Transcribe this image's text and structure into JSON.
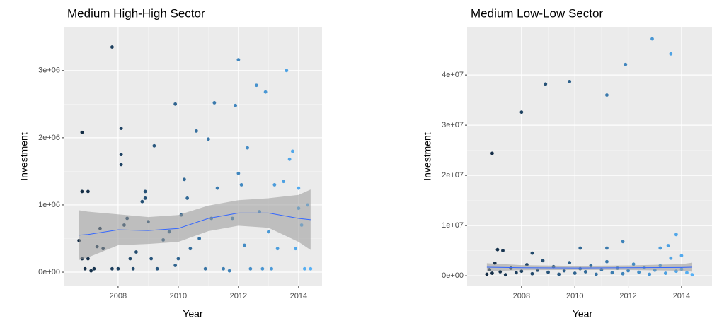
{
  "chart_data": [
    {
      "type": "scatter",
      "title": "Medium High-High Sector",
      "x_label": "Year",
      "y_label": "Investment",
      "xlim": [
        2006.19,
        2014.78
      ],
      "ylim": [
        -210000,
        3650000
      ],
      "xticks": [
        2008,
        2010,
        2012,
        2014
      ],
      "yticks": [
        {
          "value": 0,
          "label": "0e+00"
        },
        {
          "value": 1000000,
          "label": "1e+06"
        },
        {
          "value": 2000000,
          "label": "2e+06"
        },
        {
          "value": 3000000,
          "label": "3e+06"
        }
      ],
      "grid": true,
      "color_scale": [
        "#132B43",
        "#56B1F7"
      ],
      "series": [
        {
          "type": "scatter",
          "x": [
            2006.7,
            2006.8,
            2006.8,
            2007.0,
            2006.8,
            2006.9,
            2007.0,
            2007.1,
            2007.2,
            2007.3,
            2007.4,
            2007.5,
            2007.8,
            2007.8,
            2008.0,
            2008.1,
            2008.1,
            2008.1,
            2008.2,
            2008.3,
            2008.4,
            2008.5,
            2008.6,
            2008.8,
            2008.9,
            2008.9,
            2009.0,
            2009.1,
            2009.2,
            2009.3,
            2009.5,
            2009.7,
            2009.9,
            2009.9,
            2010.0,
            2010.1,
            2010.2,
            2010.3,
            2010.4,
            2010.6,
            2010.7,
            2010.9,
            2011.0,
            2011.1,
            2011.2,
            2011.3,
            2011.5,
            2011.7,
            2011.8,
            2011.9,
            2012.0,
            2012.0,
            2012.1,
            2012.2,
            2012.3,
            2012.4,
            2012.6,
            2012.7,
            2012.8,
            2012.9,
            2013.0,
            2013.1,
            2013.2,
            2013.3,
            2013.5,
            2013.6,
            2013.7,
            2013.8,
            2013.9,
            2014.0,
            2014.0,
            2014.1,
            2014.2,
            2014.3,
            2014.4
          ],
          "values": [
            470000,
            2080000,
            1200000,
            1200000,
            200000,
            50000,
            200000,
            20000,
            50000,
            380000,
            650000,
            350000,
            3350000,
            50000,
            50000,
            2140000,
            1750000,
            1600000,
            700000,
            800000,
            200000,
            50000,
            300000,
            1050000,
            1200000,
            1100000,
            750000,
            200000,
            1880000,
            50000,
            480000,
            600000,
            2500000,
            100000,
            200000,
            850000,
            1380000,
            1100000,
            350000,
            2100000,
            500000,
            50000,
            1980000,
            800000,
            2520000,
            1250000,
            50000,
            20000,
            800000,
            2480000,
            3160000,
            1470000,
            1300000,
            400000,
            1850000,
            50000,
            2780000,
            900000,
            50000,
            2680000,
            600000,
            50000,
            1300000,
            350000,
            1350000,
            3000000,
            1680000,
            1800000,
            350000,
            1250000,
            950000,
            700000,
            50000,
            1000000,
            50000
          ]
        },
        {
          "type": "smooth",
          "color": "#3366FF",
          "band_color": "#999999",
          "x": [
            2006.7,
            2007,
            2008,
            2009,
            2010,
            2011,
            2012,
            2013,
            2014,
            2014.4
          ],
          "values": [
            550000,
            560000,
            630000,
            620000,
            650000,
            800000,
            880000,
            880000,
            800000,
            780000
          ],
          "lower": [
            180000,
            220000,
            400000,
            420000,
            450000,
            610000,
            690000,
            660000,
            450000,
            330000
          ],
          "upper": [
            920000,
            900000,
            860000,
            820000,
            850000,
            990000,
            1070000,
            1100000,
            1150000,
            1230000
          ]
        }
      ]
    },
    {
      "type": "scatter",
      "title": "Medium Low-Low Sector",
      "x_label": "Year",
      "y_label": "Investment",
      "xlim": [
        2005.96,
        2015.78
      ],
      "ylim": [
        -2100000,
        49600000
      ],
      "xticks": [
        2008,
        2010,
        2012,
        2014
      ],
      "yticks": [
        {
          "value": 0,
          "label": "0e+00"
        },
        {
          "value": 10000000,
          "label": "1e+07"
        },
        {
          "value": 20000000,
          "label": "2e+07"
        },
        {
          "value": 30000000,
          "label": "3e+07"
        },
        {
          "value": 40000000,
          "label": "4e+07"
        }
      ],
      "grid": true,
      "color_scale": [
        "#132B43",
        "#56B1F7"
      ],
      "series": [
        {
          "type": "scatter",
          "x": [
            2006.9,
            2008.0,
            2008.9,
            2009.8,
            2011.2,
            2011.9,
            2012.9,
            2013.6,
            2013.8,
            2011.8,
            2007.1,
            2007.3,
            2008.4,
            2010.2,
            2011.2,
            2013.2,
            2013.5,
            2014.0,
            2006.7,
            2006.8,
            2006.9,
            2007.0,
            2007.2,
            2007.4,
            2007.6,
            2007.8,
            2008.0,
            2008.2,
            2008.4,
            2008.6,
            2008.8,
            2009.0,
            2009.2,
            2009.4,
            2009.6,
            2009.8,
            2010.0,
            2010.2,
            2010.4,
            2010.6,
            2010.8,
            2011.0,
            2011.2,
            2011.4,
            2011.6,
            2011.8,
            2012.0,
            2012.2,
            2012.4,
            2012.6,
            2012.8,
            2013.0,
            2013.2,
            2013.4,
            2013.6,
            2013.8,
            2014.0,
            2014.2,
            2014.4
          ],
          "values": [
            24400000,
            32600000,
            38200000,
            38700000,
            36000000,
            42100000,
            47200000,
            44200000,
            8200000,
            6800000,
            5200000,
            5000000,
            4500000,
            5500000,
            5500000,
            5500000,
            6000000,
            4000000,
            300000,
            1200000,
            500000,
            2500000,
            800000,
            200000,
            1500000,
            600000,
            900000,
            2200000,
            400000,
            1100000,
            3000000,
            700000,
            1800000,
            300000,
            1000000,
            2600000,
            500000,
            1400000,
            800000,
            2000000,
            300000,
            1200000,
            2800000,
            600000,
            1500000,
            400000,
            1000000,
            2300000,
            700000,
            1600000,
            300000,
            1100000,
            2000000,
            500000,
            3500000,
            900000,
            1300000,
            600000,
            200000
          ]
        },
        {
          "type": "smooth",
          "color": "#3366FF",
          "band_color": "#999999",
          "x": [
            2006.7,
            2008,
            2010,
            2012,
            2014,
            2014.4
          ],
          "values": [
            1700000,
            1600000,
            1550000,
            1600000,
            1650000,
            1700000
          ],
          "lower": [
            900000,
            1100000,
            1150000,
            1150000,
            1000000,
            800000
          ],
          "upper": [
            2500000,
            2100000,
            1950000,
            2050000,
            2300000,
            2600000
          ]
        }
      ]
    }
  ]
}
